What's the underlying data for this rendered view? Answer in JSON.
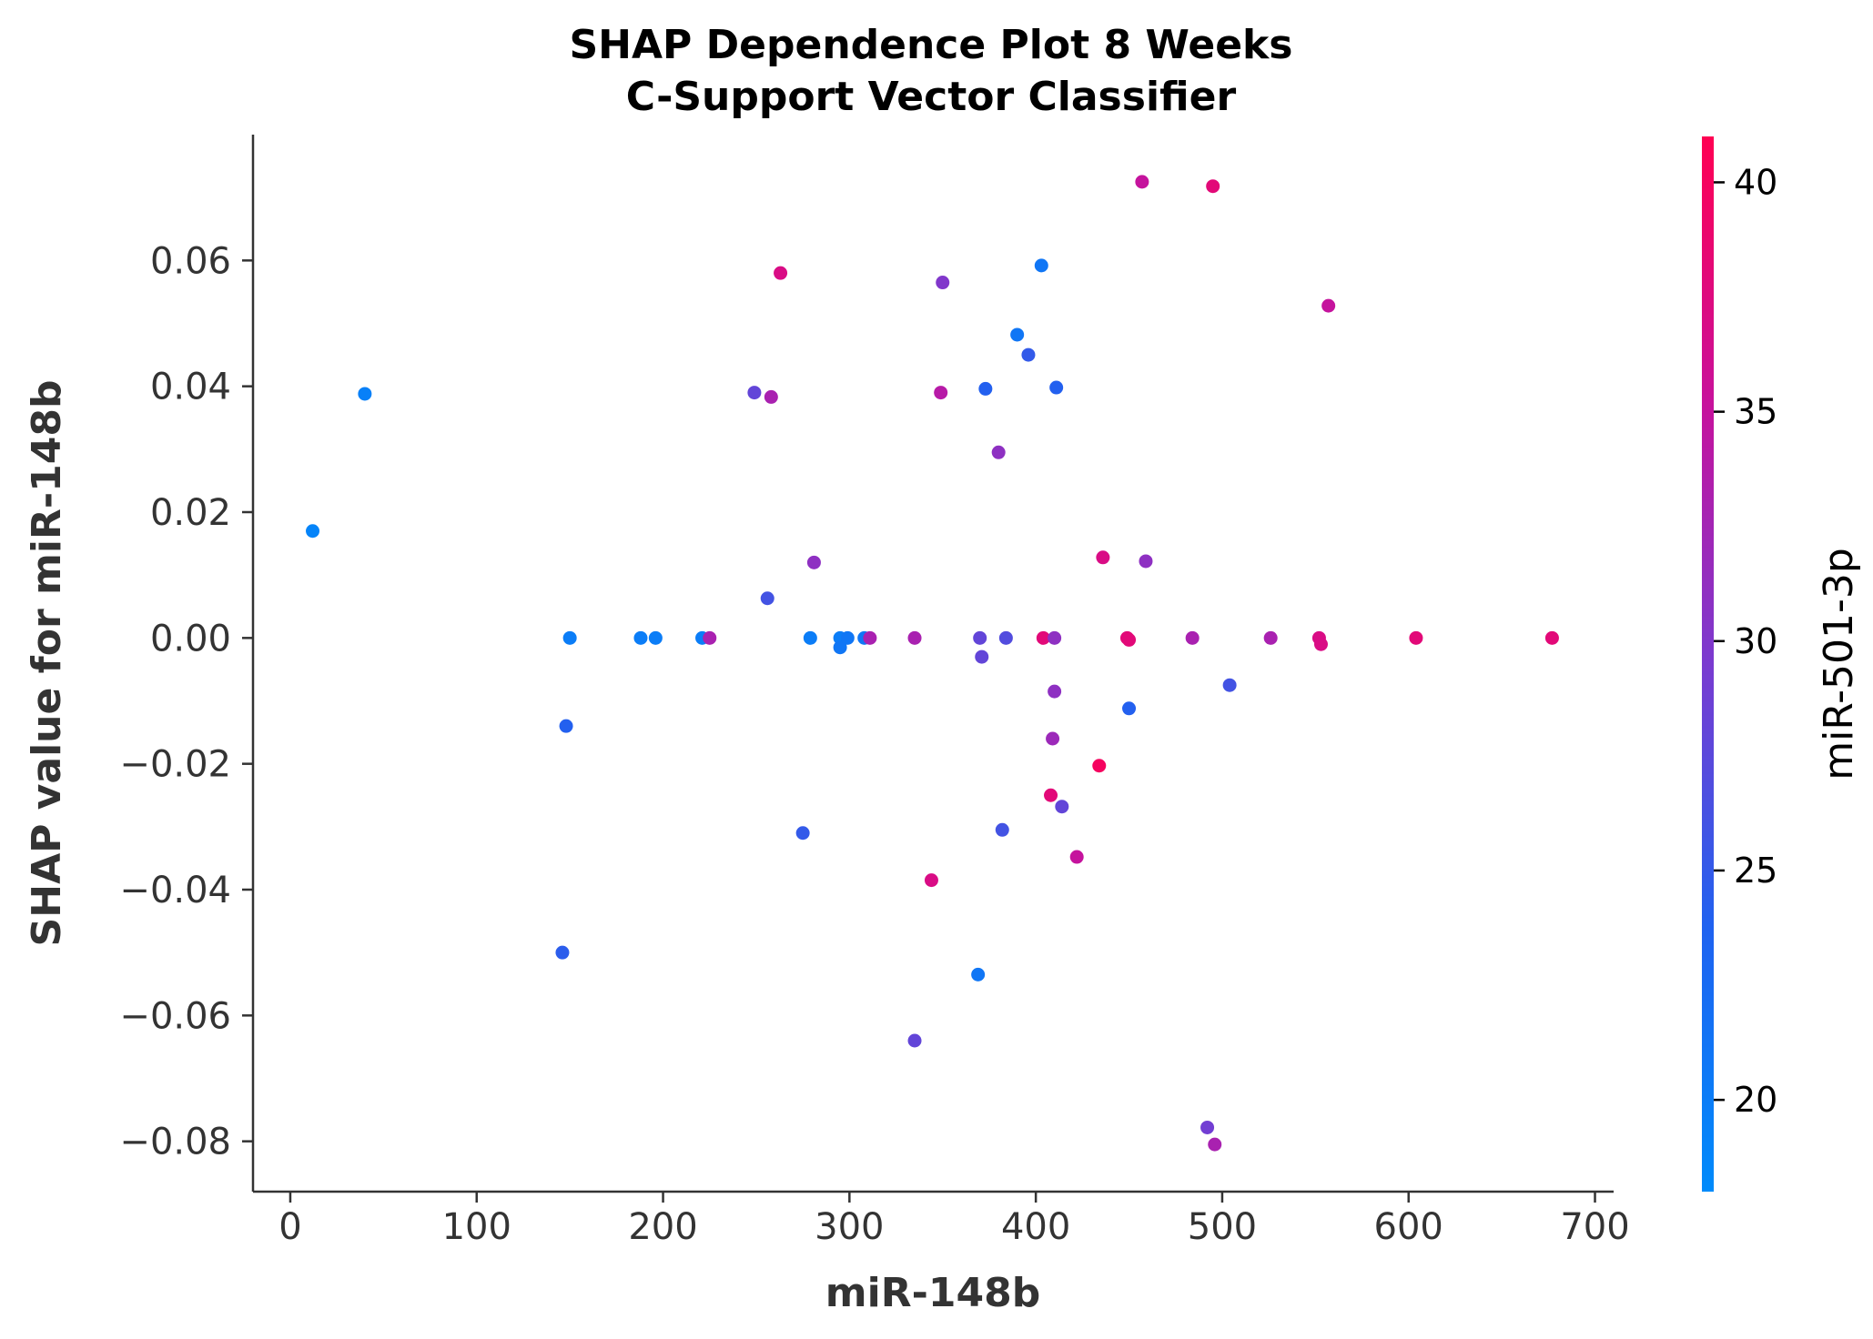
{
  "chart_data": {
    "type": "scatter",
    "title_line1": "SHAP Dependence Plot 8 Weeks",
    "title_line2": "C-Support Vector Classifier",
    "xlabel": "miR-148b",
    "ylabel": "SHAP value for miR-148b",
    "xlim": [
      -20,
      710
    ],
    "ylim": [
      -0.088,
      0.08
    ],
    "x_ticks": [
      0,
      100,
      200,
      300,
      400,
      500,
      600,
      700
    ],
    "x_tick_labels": [
      "0",
      "100",
      "200",
      "300",
      "400",
      "500",
      "600",
      "700"
    ],
    "y_ticks": [
      0.06,
      0.04,
      0.02,
      0.0,
      -0.02,
      -0.04,
      -0.06,
      -0.08
    ],
    "y_tick_labels": [
      "0.06",
      "0.04",
      "0.02",
      "0.00",
      "−0.02",
      "−0.04",
      "−0.06",
      "−0.08"
    ],
    "colorbar": {
      "label": "miR-501-3p",
      "range": [
        18,
        41
      ],
      "ticks": [
        20,
        25,
        30,
        35,
        40
      ],
      "tick_labels": [
        "20",
        "25",
        "30",
        "35",
        "40"
      ],
      "color_low": "#008bfb",
      "color_high": "#ff0052"
    },
    "grid": false,
    "points": [
      {
        "x": 12,
        "y": 0.017,
        "c": 19
      },
      {
        "x": 40,
        "y": 0.0388,
        "c": 19.5
      },
      {
        "x": 150,
        "y": 0.0,
        "c": 20
      },
      {
        "x": 148,
        "y": -0.014,
        "c": 24
      },
      {
        "x": 146,
        "y": -0.05,
        "c": 24.5
      },
      {
        "x": 188,
        "y": 0.0,
        "c": 20
      },
      {
        "x": 196,
        "y": 0.0,
        "c": 20
      },
      {
        "x": 221,
        "y": 0.0,
        "c": 20
      },
      {
        "x": 225,
        "y": 0.0,
        "c": 33
      },
      {
        "x": 249,
        "y": 0.039,
        "c": 28
      },
      {
        "x": 256,
        "y": 0.0063,
        "c": 26
      },
      {
        "x": 258,
        "y": 0.0383,
        "c": 33
      },
      {
        "x": 263,
        "y": 0.058,
        "c": 37
      },
      {
        "x": 275,
        "y": -0.031,
        "c": 25
      },
      {
        "x": 279,
        "y": 0.0,
        "c": 20
      },
      {
        "x": 281,
        "y": 0.012,
        "c": 31
      },
      {
        "x": 295,
        "y": 0.0,
        "c": 20
      },
      {
        "x": 295,
        "y": -0.0015,
        "c": 21
      },
      {
        "x": 299,
        "y": 0.0,
        "c": 21
      },
      {
        "x": 308,
        "y": 0.0,
        "c": 21
      },
      {
        "x": 311,
        "y": 0.0,
        "c": 33
      },
      {
        "x": 335,
        "y": 0.0,
        "c": 33
      },
      {
        "x": 335,
        "y": -0.064,
        "c": 28
      },
      {
        "x": 344,
        "y": -0.0385,
        "c": 37
      },
      {
        "x": 349,
        "y": 0.039,
        "c": 34
      },
      {
        "x": 350,
        "y": 0.0565,
        "c": 30
      },
      {
        "x": 369,
        "y": -0.0535,
        "c": 21
      },
      {
        "x": 370,
        "y": 0.0,
        "c": 28
      },
      {
        "x": 371,
        "y": -0.003,
        "c": 28
      },
      {
        "x": 373,
        "y": 0.0396,
        "c": 24
      },
      {
        "x": 380,
        "y": 0.0295,
        "c": 31
      },
      {
        "x": 382,
        "y": -0.0305,
        "c": 26
      },
      {
        "x": 384,
        "y": 0.0,
        "c": 27
      },
      {
        "x": 390,
        "y": 0.0482,
        "c": 21
      },
      {
        "x": 396,
        "y": 0.045,
        "c": 25
      },
      {
        "x": 403,
        "y": 0.0592,
        "c": 21
      },
      {
        "x": 404,
        "y": 0.0,
        "c": 38
      },
      {
        "x": 408,
        "y": -0.025,
        "c": 38
      },
      {
        "x": 409,
        "y": -0.016,
        "c": 32
      },
      {
        "x": 410,
        "y": 0.0,
        "c": 31
      },
      {
        "x": 410,
        "y": -0.0085,
        "c": 31
      },
      {
        "x": 411,
        "y": 0.0398,
        "c": 24
      },
      {
        "x": 414,
        "y": -0.0268,
        "c": 28
      },
      {
        "x": 422,
        "y": -0.0348,
        "c": 35
      },
      {
        "x": 434,
        "y": -0.0203,
        "c": 40
      },
      {
        "x": 436,
        "y": 0.0128,
        "c": 37
      },
      {
        "x": 449,
        "y": 0.0,
        "c": 38
      },
      {
        "x": 450,
        "y": -0.0112,
        "c": 24
      },
      {
        "x": 450,
        "y": -0.0003,
        "c": 38
      },
      {
        "x": 457,
        "y": 0.0725,
        "c": 35
      },
      {
        "x": 459,
        "y": 0.0122,
        "c": 31
      },
      {
        "x": 484,
        "y": 0.0,
        "c": 33
      },
      {
        "x": 492,
        "y": -0.0778,
        "c": 29
      },
      {
        "x": 495,
        "y": 0.0718,
        "c": 38
      },
      {
        "x": 496,
        "y": -0.0805,
        "c": 33
      },
      {
        "x": 504,
        "y": -0.0075,
        "c": 26
      },
      {
        "x": 526,
        "y": 0.0,
        "c": 33
      },
      {
        "x": 552,
        "y": 0.0,
        "c": 37
      },
      {
        "x": 553,
        "y": -0.001,
        "c": 37
      },
      {
        "x": 557,
        "y": 0.0528,
        "c": 35
      },
      {
        "x": 604,
        "y": 0.0,
        "c": 38
      },
      {
        "x": 677,
        "y": 0.0,
        "c": 38
      }
    ]
  }
}
